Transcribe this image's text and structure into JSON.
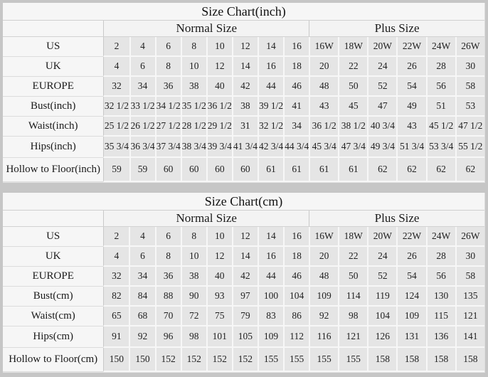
{
  "page": {
    "background_color": "#c6c6c6",
    "table_background_color": "#f6f6f6",
    "cell_background_color": "#e5e5e5"
  },
  "chart_data": [
    {
      "type": "table",
      "title": "Size Chart(inch)",
      "sections": [
        {
          "label": "Normal Size",
          "columns": 8
        },
        {
          "label": "Plus Size",
          "columns": 6
        }
      ],
      "rows": [
        {
          "label": "US",
          "values": [
            "2",
            "4",
            "6",
            "8",
            "10",
            "12",
            "14",
            "16",
            "16W",
            "18W",
            "20W",
            "22W",
            "24W",
            "26W"
          ]
        },
        {
          "label": "UK",
          "values": [
            "4",
            "6",
            "8",
            "10",
            "12",
            "14",
            "16",
            "18",
            "20",
            "22",
            "24",
            "26",
            "28",
            "30"
          ]
        },
        {
          "label": "EUROPE",
          "values": [
            "32",
            "34",
            "36",
            "38",
            "40",
            "42",
            "44",
            "46",
            "48",
            "50",
            "52",
            "54",
            "56",
            "58"
          ]
        },
        {
          "label": "Bust(inch)",
          "values": [
            "32 1/2",
            "33 1/2",
            "34 1/2",
            "35 1/2",
            "36 1/2",
            "38",
            "39 1/2",
            "41",
            "43",
            "45",
            "47",
            "49",
            "51",
            "53"
          ]
        },
        {
          "label": "Waist(inch)",
          "values": [
            "25 1/2",
            "26 1/2",
            "27 1/2",
            "28 1/2",
            "29 1/2",
            "31",
            "32 1/2",
            "34",
            "36 1/2",
            "38 1/2",
            "40 3/4",
            "43",
            "45 1/2",
            "47 1/2"
          ]
        },
        {
          "label": "Hips(inch)",
          "values": [
            "35 3/4",
            "36 3/4",
            "37 3/4",
            "38 3/4",
            "39 3/4",
            "41 3/4",
            "42 3/4",
            "44 3/4",
            "45 3/4",
            "47 3/4",
            "49 3/4",
            "51 3/4",
            "53 3/4",
            "55 1/2"
          ]
        },
        {
          "label": "Hollow to Floor(inch)",
          "values": [
            "59",
            "59",
            "60",
            "60",
            "60",
            "60",
            "61",
            "61",
            "61",
            "61",
            "62",
            "62",
            "62",
            "62"
          ]
        }
      ]
    },
    {
      "type": "table",
      "title": "Size Chart(cm)",
      "sections": [
        {
          "label": "Normal Size",
          "columns": 8
        },
        {
          "label": "Plus Size",
          "columns": 6
        }
      ],
      "rows": [
        {
          "label": "US",
          "values": [
            "2",
            "4",
            "6",
            "8",
            "10",
            "12",
            "14",
            "16",
            "16W",
            "18W",
            "20W",
            "22W",
            "24W",
            "26W"
          ]
        },
        {
          "label": "UK",
          "values": [
            "4",
            "6",
            "8",
            "10",
            "12",
            "14",
            "16",
            "18",
            "20",
            "22",
            "24",
            "26",
            "28",
            "30"
          ]
        },
        {
          "label": "EUROPE",
          "values": [
            "32",
            "34",
            "36",
            "38",
            "40",
            "42",
            "44",
            "46",
            "48",
            "50",
            "52",
            "54",
            "56",
            "58"
          ]
        },
        {
          "label": "Bust(cm)",
          "values": [
            "82",
            "84",
            "88",
            "90",
            "93",
            "97",
            "100",
            "104",
            "109",
            "114",
            "119",
            "124",
            "130",
            "135"
          ]
        },
        {
          "label": "Waist(cm)",
          "values": [
            "65",
            "68",
            "70",
            "72",
            "75",
            "79",
            "83",
            "86",
            "92",
            "98",
            "104",
            "109",
            "115",
            "121"
          ]
        },
        {
          "label": "Hips(cm)",
          "values": [
            "91",
            "92",
            "96",
            "98",
            "101",
            "105",
            "109",
            "112",
            "116",
            "121",
            "126",
            "131",
            "136",
            "141"
          ]
        },
        {
          "label": "Hollow to Floor(cm)",
          "values": [
            "150",
            "150",
            "152",
            "152",
            "152",
            "152",
            "155",
            "155",
            "155",
            "155",
            "158",
            "158",
            "158",
            "158"
          ]
        }
      ]
    }
  ]
}
